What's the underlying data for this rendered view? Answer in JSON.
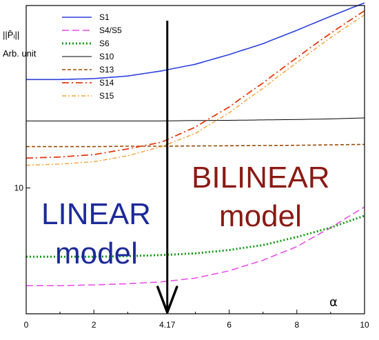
{
  "chart_data": {
    "type": "line",
    "yscale": "log",
    "xlim": [
      0,
      10
    ],
    "ylim": [
      6.2,
      20
    ],
    "x_ticks": [
      0,
      2,
      6,
      8,
      10
    ],
    "y_ticks": [
      10
    ],
    "xlabel": "α",
    "ylabel_top": "||P̄ᵢ||",
    "ylabel_unit": "Arb. unit",
    "legend_position": "top-left",
    "annotations": {
      "arrow_x": 4.17,
      "arrow_label": "4.17",
      "linear_line1": "LINEAR",
      "linear_line2": "model",
      "bilinear_line1": "BILINEAR",
      "bilinear_line2": "model"
    },
    "colors": {
      "S1": "#2b3fe0",
      "S4/S5": "#ee44ee",
      "S6": "#119911",
      "S10": "#000000",
      "S13": "#9a4a00",
      "S14": "#e53a10",
      "S15": "#f5a030",
      "linear_text": "#1c2a9a",
      "bilinear_text": "#8a1a14"
    },
    "x": [
      0,
      1,
      2,
      3,
      4,
      5,
      6,
      7,
      8,
      9,
      10
    ],
    "series": [
      {
        "name": "S1",
        "values": [
          15.1,
          15.1,
          15.15,
          15.3,
          15.6,
          16.0,
          16.6,
          17.3,
          18.2,
          19.2,
          20.2
        ]
      },
      {
        "name": "S4/S5",
        "values": [
          6.9,
          6.9,
          6.92,
          6.95,
          7.0,
          7.1,
          7.3,
          7.6,
          8.0,
          8.6,
          9.3
        ]
      },
      {
        "name": "S6",
        "values": [
          7.7,
          7.7,
          7.7,
          7.72,
          7.75,
          7.8,
          7.9,
          8.05,
          8.3,
          8.6,
          9.0
        ]
      },
      {
        "name": "S10",
        "values": [
          12.9,
          12.9,
          12.9,
          12.9,
          12.9,
          12.92,
          12.93,
          12.95,
          12.97,
          13.0,
          13.05
        ]
      },
      {
        "name": "S13",
        "values": [
          11.7,
          11.7,
          11.7,
          11.72,
          11.72,
          11.73,
          11.74,
          11.75,
          11.76,
          11.78,
          11.8
        ]
      },
      {
        "name": "S14",
        "values": [
          11.2,
          11.25,
          11.35,
          11.6,
          11.9,
          12.6,
          13.6,
          14.9,
          16.4,
          18.0,
          19.6
        ]
      },
      {
        "name": "S15",
        "values": [
          10.9,
          10.95,
          11.05,
          11.3,
          11.7,
          12.3,
          13.3,
          14.6,
          16.1,
          17.7,
          19.3
        ]
      }
    ]
  }
}
